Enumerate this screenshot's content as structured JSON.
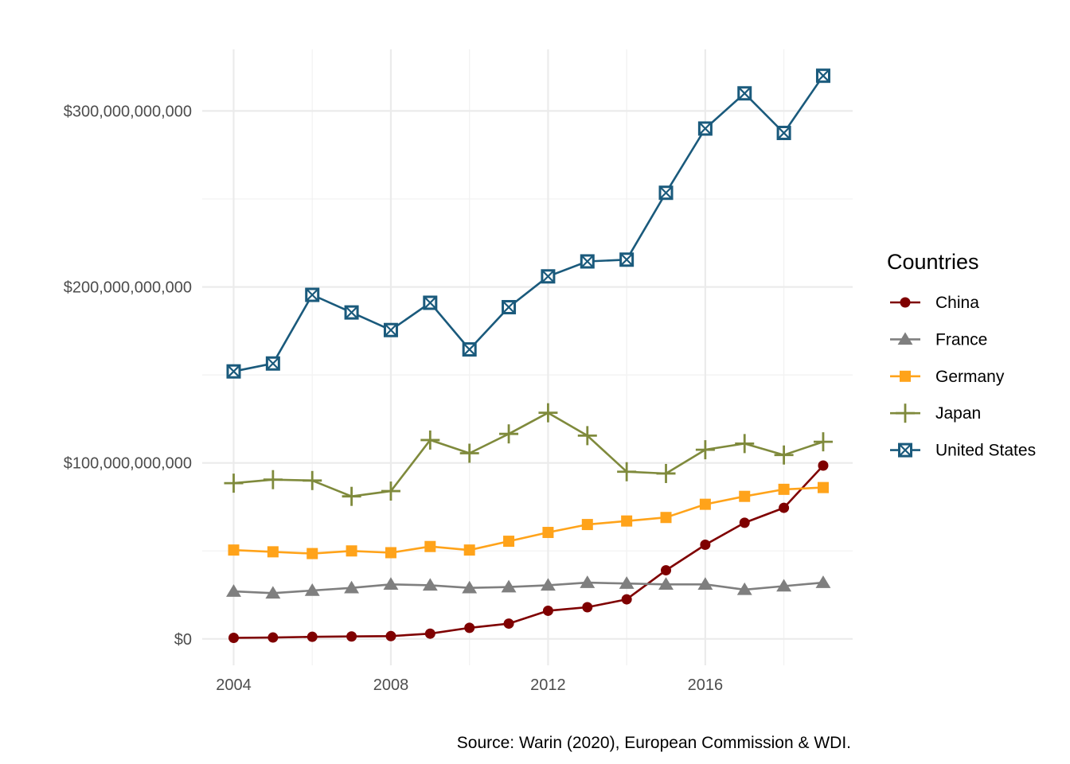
{
  "chart_data": {
    "type": "line",
    "title": "",
    "xlabel": "",
    "ylabel": "",
    "caption": "Source: Warin (2020), European Commission & WDI.",
    "x": [
      2004,
      2005,
      2006,
      2007,
      2008,
      2009,
      2010,
      2011,
      2012,
      2013,
      2014,
      2015,
      2016,
      2017,
      2018,
      2019
    ],
    "xlim": [
      2003.2,
      2019.75
    ],
    "ylim": [
      -15000000000,
      335000000000
    ],
    "x_ticks": [
      2004,
      2008,
      2012,
      2016
    ],
    "x_tick_labels": [
      "2004",
      "2008",
      "2012",
      "2016"
    ],
    "y_ticks": [
      0,
      100000000000,
      200000000000,
      300000000000
    ],
    "y_tick_labels": [
      "$0",
      "$100,000,000,000",
      "$200,000,000,000",
      "$300,000,000,000"
    ],
    "grid": true,
    "legend": {
      "title": "Countries",
      "position": "right"
    },
    "series": [
      {
        "name": "China",
        "color": "#7f0000",
        "marker": "circle",
        "values": [
          600000000,
          800000000,
          1200000000,
          1400000000,
          1600000000,
          3000000000,
          6300000000,
          8700000000,
          16000000000,
          18000000000,
          22500000000,
          39000000000,
          53500000000,
          66000000000,
          74500000000,
          98500000000
        ]
      },
      {
        "name": "France",
        "color": "#7f7f7f",
        "marker": "triangle",
        "values": [
          27000000000,
          26000000000,
          27500000000,
          29000000000,
          31000000000,
          30500000000,
          29000000000,
          29500000000,
          30500000000,
          32000000000,
          31500000000,
          31000000000,
          31000000000,
          28000000000,
          30000000000,
          32000000000
        ]
      },
      {
        "name": "Germany",
        "color": "#ffa31a",
        "marker": "square",
        "values": [
          50500000000,
          49500000000,
          48500000000,
          50000000000,
          49000000000,
          52500000000,
          50500000000,
          55500000000,
          60500000000,
          65000000000,
          67000000000,
          69000000000,
          76500000000,
          81000000000,
          85000000000,
          86000000000
        ]
      },
      {
        "name": "Japan",
        "color": "#7f8a3c",
        "marker": "plus",
        "values": [
          88500000000,
          90500000000,
          90000000000,
          81000000000,
          84000000000,
          113000000000,
          105500000000,
          116500000000,
          128500000000,
          115500000000,
          95000000000,
          94000000000,
          107500000000,
          111000000000,
          104500000000,
          112000000000
        ]
      },
      {
        "name": "United States",
        "color": "#1a5a7c",
        "marker": "square-cross",
        "values": [
          152000000000,
          156500000000,
          195500000000,
          185500000000,
          175500000000,
          191000000000,
          164500000000,
          188500000000,
          206000000000,
          214500000000,
          215500000000,
          253500000000,
          290000000000,
          310000000000,
          287500000000,
          320000000000
        ]
      }
    ]
  }
}
